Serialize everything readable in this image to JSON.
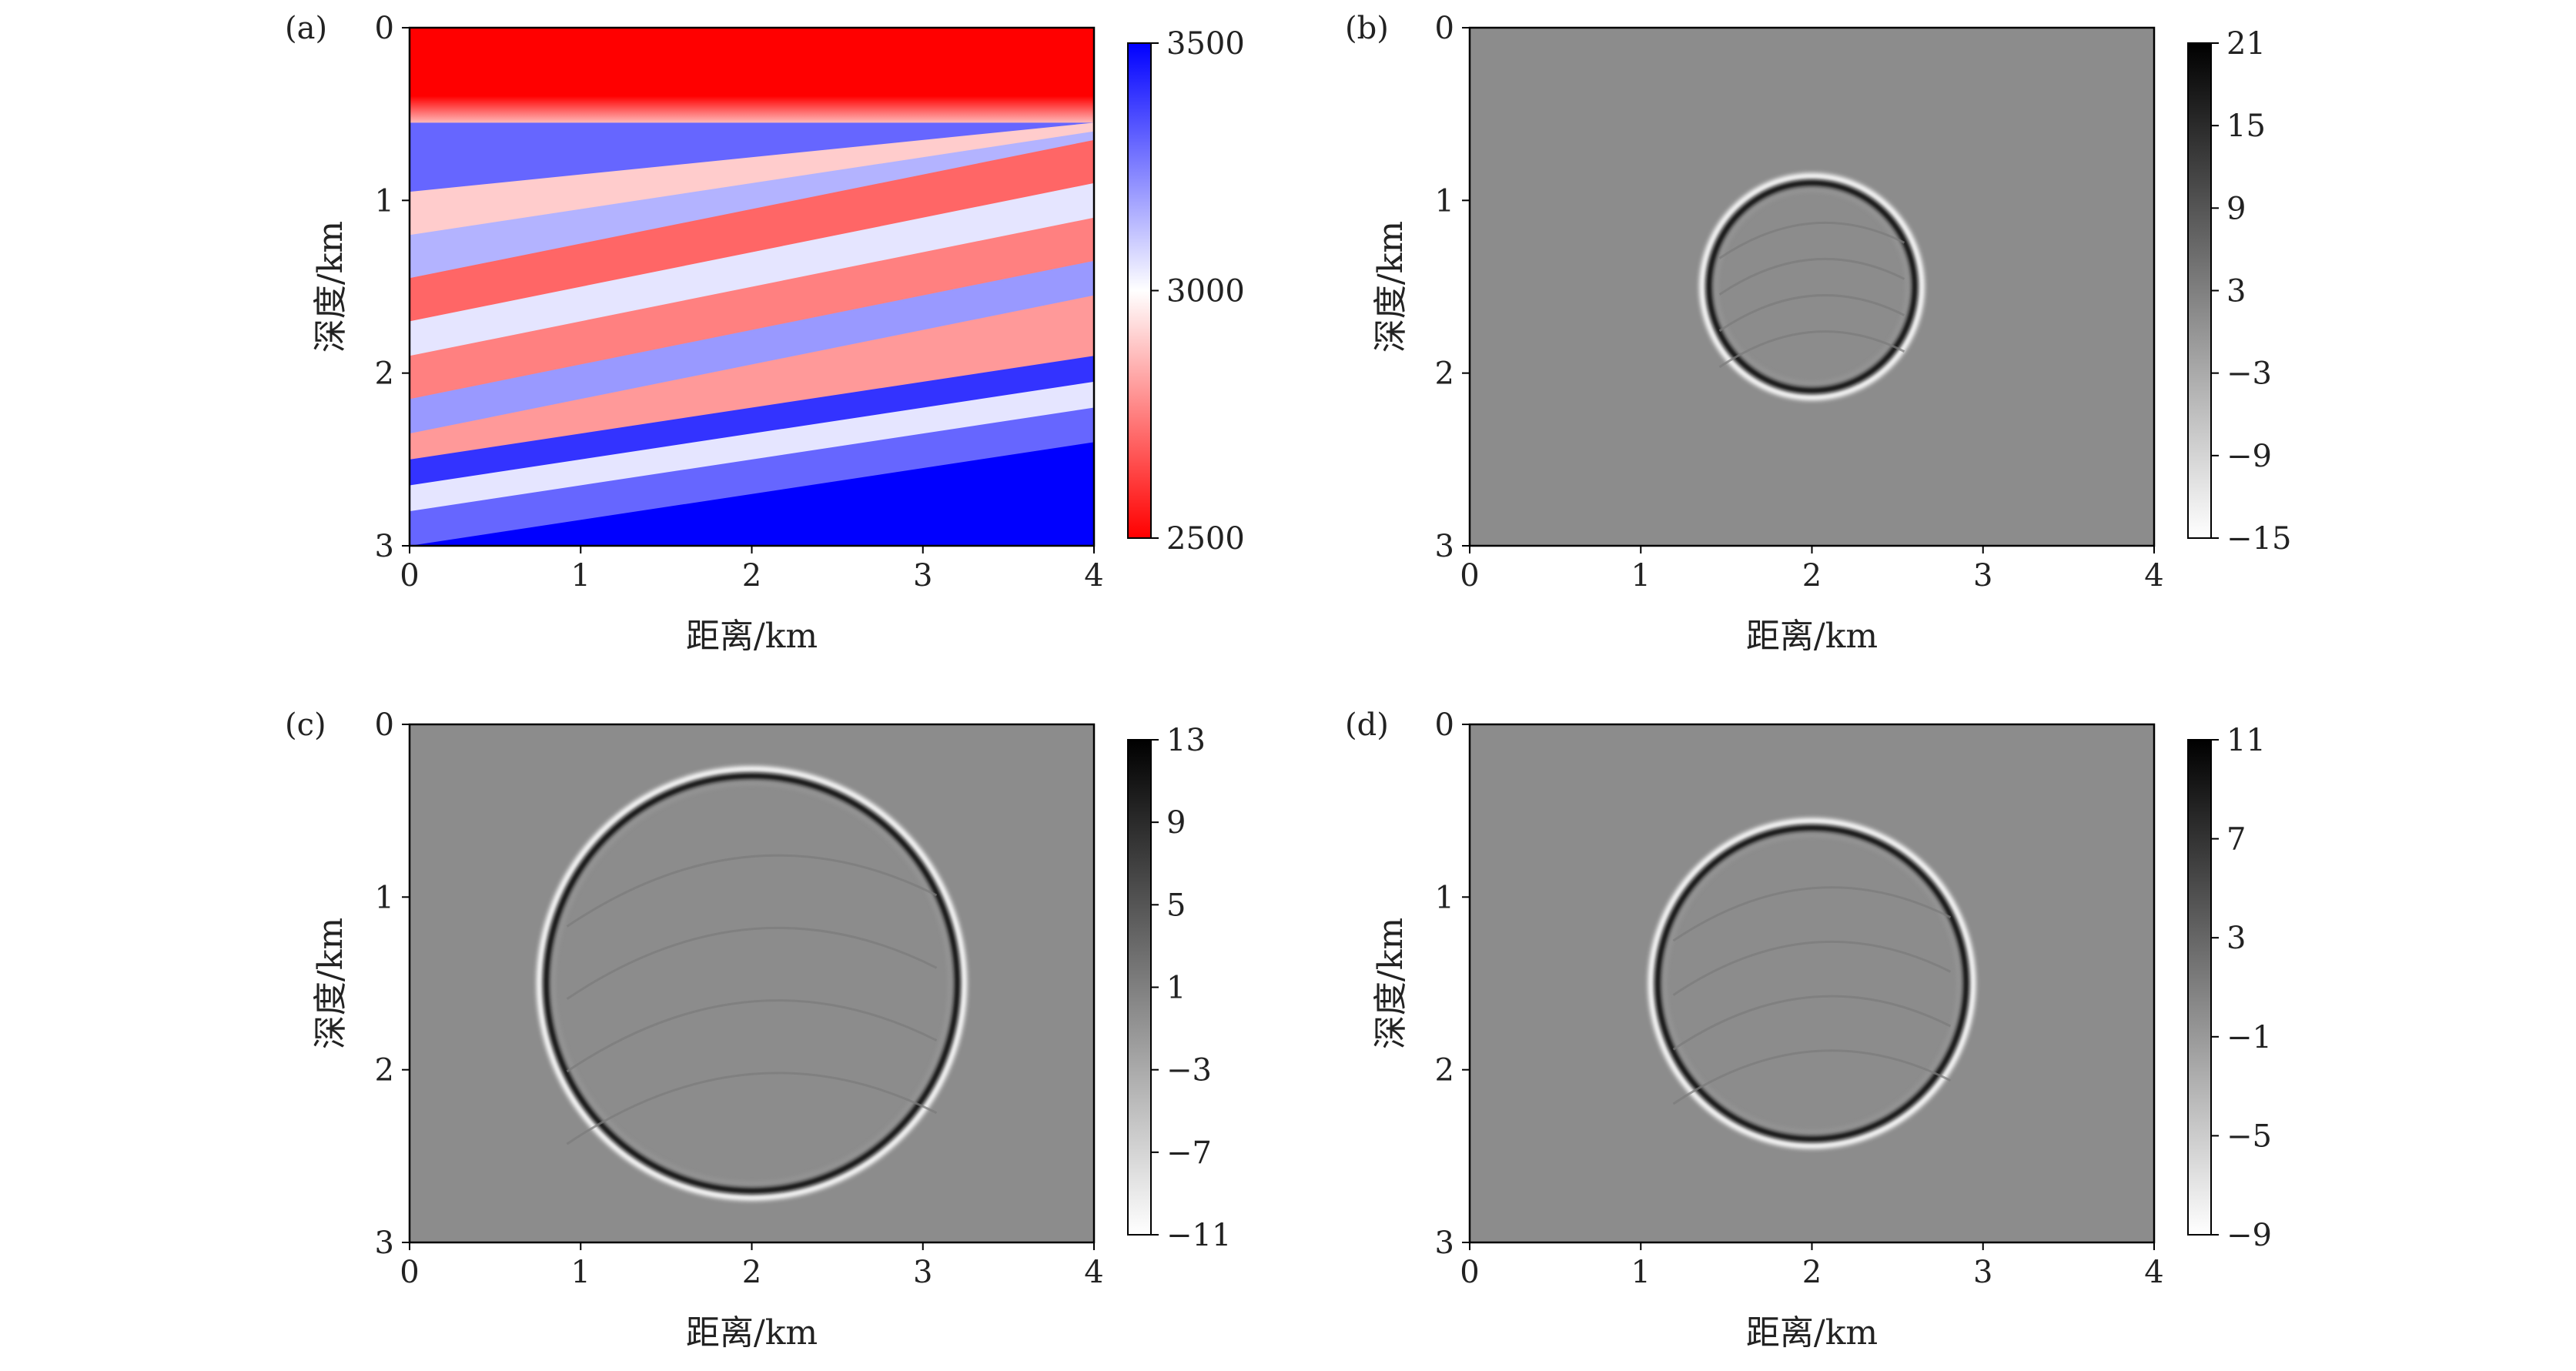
{
  "chart_data": [
    {
      "panel_label": "(a)",
      "type": "heatmap",
      "xlabel": "距离/km",
      "ylabel": "深度/km",
      "x_ticks": [
        "0",
        "1",
        "2",
        "3",
        "4"
      ],
      "y_ticks": [
        "0",
        "1",
        "2",
        "3"
      ],
      "xlim": [
        0,
        4
      ],
      "ylim": [
        0,
        3
      ],
      "colormap": "bwr_r",
      "colorbar_range": [
        2500,
        3500
      ],
      "colorbar_ticks": [
        "3500",
        "3000",
        "2500"
      ],
      "colorbar_tick_values": [
        3500,
        3000,
        2500
      ],
      "content": "velocity model: water layer (2500) to 0.5 km, dipping layers below",
      "layers": [
        {
          "top": 0.5,
          "thick": 0.45,
          "slope": -0.05,
          "v": 3300
        },
        {
          "top": 0.95,
          "thick": 0.25,
          "slope": -0.1,
          "v": 2900
        },
        {
          "top": 1.2,
          "thick": 0.25,
          "slope": -0.15,
          "v": 3150
        },
        {
          "top": 1.45,
          "thick": 0.25,
          "slope": -0.2,
          "v": 2700
        },
        {
          "top": 1.7,
          "thick": 0.2,
          "slope": -0.2,
          "v": 3050
        },
        {
          "top": 1.9,
          "thick": 0.25,
          "slope": -0.2,
          "v": 2750
        },
        {
          "top": 2.15,
          "thick": 0.2,
          "slope": -0.2,
          "v": 3200
        },
        {
          "top": 2.35,
          "thick": 0.15,
          "slope": -0.2,
          "v": 2800
        },
        {
          "top": 2.5,
          "thick": 0.15,
          "slope": -0.15,
          "v": 3400
        },
        {
          "top": 2.65,
          "thick": 0.15,
          "slope": -0.15,
          "v": 3050
        },
        {
          "top": 2.8,
          "thick": 0.2,
          "slope": -0.15,
          "v": 3300
        },
        {
          "top": 3.0,
          "thick": 0.2,
          "slope": -0.15,
          "v": 3500
        }
      ]
    },
    {
      "panel_label": "(b)",
      "type": "heatmap",
      "xlabel": "距离/km",
      "ylabel": "深度/km",
      "x_ticks": [
        "0",
        "1",
        "2",
        "3",
        "4"
      ],
      "y_ticks": [
        "0",
        "1",
        "2",
        "3"
      ],
      "xlim": [
        0,
        4
      ],
      "ylim": [
        0,
        3
      ],
      "colormap": "gray_r",
      "colorbar_range": [
        -15,
        21
      ],
      "colorbar_ticks": [
        "21",
        "15",
        "9",
        "3",
        "−3",
        "−9",
        "−15"
      ],
      "colorbar_tick_values": [
        21,
        15,
        9,
        3,
        -3,
        -9,
        -15
      ],
      "wavefront": {
        "center_x": 2.0,
        "center_z": 1.5,
        "radius_km": 0.6
      }
    },
    {
      "panel_label": "(c)",
      "type": "heatmap",
      "xlabel": "距离/km",
      "ylabel": "深度/km",
      "x_ticks": [
        "0",
        "1",
        "2",
        "3",
        "4"
      ],
      "y_ticks": [
        "0",
        "1",
        "2",
        "3"
      ],
      "xlim": [
        0,
        4
      ],
      "ylim": [
        0,
        3
      ],
      "colormap": "gray_r",
      "colorbar_range": [
        -11,
        13
      ],
      "colorbar_ticks": [
        "13",
        "9",
        "5",
        "1",
        "−3",
        "−7",
        "−11"
      ],
      "colorbar_tick_values": [
        13,
        9,
        5,
        1,
        -3,
        -7,
        -11
      ],
      "wavefront": {
        "center_x": 2.0,
        "center_z": 1.5,
        "radius_km": 1.2
      }
    },
    {
      "panel_label": "(d)",
      "type": "heatmap",
      "xlabel": "距离/km",
      "ylabel": "深度/km",
      "x_ticks": [
        "0",
        "1",
        "2",
        "3",
        "4"
      ],
      "y_ticks": [
        "0",
        "1",
        "2",
        "3"
      ],
      "xlim": [
        0,
        4
      ],
      "ylim": [
        0,
        3
      ],
      "colormap": "gray_r",
      "colorbar_range": [
        -9,
        11
      ],
      "colorbar_ticks": [
        "11",
        "7",
        "3",
        "−1",
        "−5",
        "−9"
      ],
      "colorbar_tick_values": [
        11,
        7,
        3,
        -1,
        -5,
        -9
      ],
      "wavefront": {
        "center_x": 2.0,
        "center_z": 1.5,
        "radius_km": 0.9
      }
    }
  ]
}
